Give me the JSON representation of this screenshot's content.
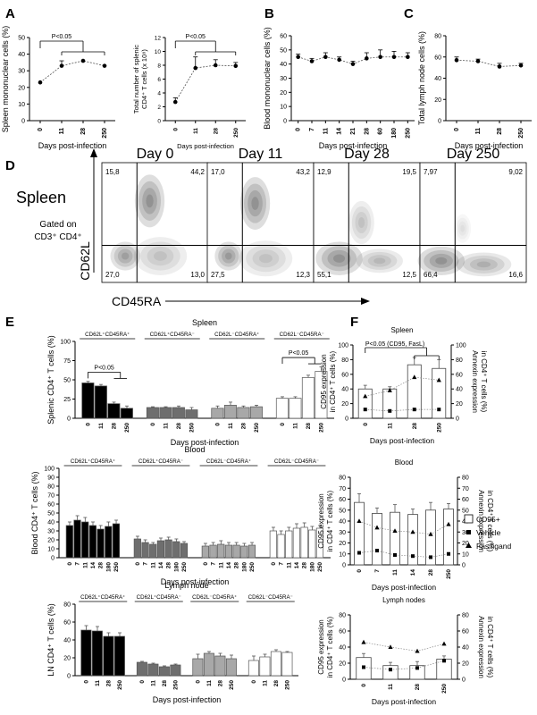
{
  "figure": {
    "panel_letters": [
      "A",
      "B",
      "C",
      "D",
      "E",
      "F"
    ],
    "x_axis_label": "Days post-infection",
    "d": {
      "tissue": "Spleen",
      "gate_line1": "Gated on",
      "gate_line2": "CD3⁺ CD4⁺",
      "y_marker": "CD62L",
      "x_marker": "CD45RA",
      "days": [
        "Day 0",
        "Day 11",
        "Day 28",
        "Day 250"
      ]
    },
    "f_legend": [
      "CD95+",
      "Vehicle",
      "Fas ligand"
    ]
  },
  "chart_data": [
    {
      "id": "A1",
      "type": "line",
      "ylabel": "Spleen mononuclear cells (%)",
      "xlabel": "Days post-infection",
      "categories": [
        "0",
        "11",
        "28",
        "250"
      ],
      "values": [
        23,
        33,
        36,
        33
      ],
      "errors": [
        0,
        3,
        0,
        0
      ],
      "ylim": [
        0,
        50
      ],
      "yticks": [
        0,
        10,
        20,
        30,
        40,
        50
      ],
      "significance": {
        "label": "P<0.05",
        "from": 0,
        "to": [
          1,
          3
        ]
      }
    },
    {
      "id": "A2",
      "type": "line",
      "ylabel_lines": [
        "Total number of splenic",
        "CD4⁺ T cells (x 10⁸)"
      ],
      "xlabel": "Days post-infection",
      "categories": [
        "0",
        "11",
        "28",
        "250"
      ],
      "values": [
        2.7,
        7.6,
        8.0,
        7.9
      ],
      "errors": [
        0.6,
        1.6,
        0.8,
        0.5
      ],
      "ylim": [
        0,
        12
      ],
      "yticks": [
        0,
        2,
        4,
        6,
        8,
        10,
        12
      ],
      "significance": {
        "label": "P<0.05",
        "from": 0,
        "to": [
          1,
          3
        ]
      }
    },
    {
      "id": "B",
      "type": "line",
      "ylabel": "Blood mononuclear cells (%)",
      "xlabel": "Days post-infection",
      "categories": [
        "0",
        "7",
        "11",
        "14",
        "21",
        "28",
        "60",
        "180",
        "250"
      ],
      "values": [
        45,
        42,
        45,
        43,
        40,
        44,
        45,
        45,
        45
      ],
      "errors": [
        2,
        2,
        3,
        2,
        2,
        4,
        5,
        4,
        3
      ],
      "ylim": [
        0,
        60
      ],
      "yticks": [
        0,
        10,
        20,
        30,
        40,
        50,
        60
      ]
    },
    {
      "id": "C",
      "type": "line",
      "ylabel": "Total lymph node cells (%)",
      "xlabel": "Days post-infection",
      "categories": [
        "0",
        "11",
        "28",
        "250"
      ],
      "values": [
        57,
        56,
        51,
        52
      ],
      "errors": [
        3,
        2,
        3,
        2
      ],
      "ylim": [
        0,
        80
      ],
      "yticks": [
        0,
        20,
        40,
        60,
        80
      ]
    },
    {
      "id": "D",
      "type": "scatter",
      "title": "Spleen",
      "xlabel": "CD45RA",
      "ylabel": "CD62L",
      "facets": [
        {
          "title": "Day 0",
          "quadrants": {
            "ul": "15,8",
            "ur": "44,2",
            "ll": "27,0",
            "lr": "13,0"
          }
        },
        {
          "title": "Day 11",
          "quadrants": {
            "ul": "17,0",
            "ur": "43,2",
            "ll": "27,5",
            "lr": "12,3"
          }
        },
        {
          "title": "Day 28",
          "quadrants": {
            "ul": "12,9",
            "ur": "19,5",
            "ll": "55,1",
            "lr": "12,5"
          }
        },
        {
          "title": "Day 250",
          "quadrants": {
            "ul": "7,97",
            "ur": "9,02",
            "ll": "66,4",
            "lr": "16,6"
          }
        }
      ]
    },
    {
      "id": "E-spleen",
      "type": "bar",
      "title": "Spleen",
      "ylabel": "Splenic CD4⁺ T cells (%)",
      "xlabel": "Days post-infection",
      "categories": [
        "0",
        "11",
        "28",
        "250"
      ],
      "ylim": [
        0,
        100
      ],
      "yticks": [
        0,
        25,
        50,
        75,
        100
      ],
      "series": [
        {
          "name": "CD62L⁺CD45RA⁺",
          "color": "#000000",
          "values": [
            46,
            42,
            19,
            13
          ],
          "errors": [
            2,
            2,
            2,
            3
          ]
        },
        {
          "name": "CD62L⁺CD45RA⁻",
          "color": "#6e6e6e",
          "values": [
            14,
            14,
            14,
            11
          ],
          "errors": [
            1,
            1,
            2,
            3
          ]
        },
        {
          "name": "CD62L⁻CD45RA⁺",
          "color": "#a8a8a8",
          "values": [
            13,
            17,
            14,
            15
          ],
          "errors": [
            3,
            4,
            2,
            2
          ]
        },
        {
          "name": "CD62L⁻CD45RA⁻",
          "color": "#ffffff",
          "values": [
            26,
            26,
            53,
            61
          ],
          "errors": [
            2,
            2,
            3,
            6
          ]
        }
      ],
      "significance": [
        {
          "label": "P<0.05",
          "series": 0
        },
        {
          "label": "P<0.05",
          "series": 3
        }
      ]
    },
    {
      "id": "E-blood",
      "type": "bar",
      "title": "Blood",
      "ylabel": "Blood CD4⁺ T cells (%)",
      "xlabel": "Days post-infection",
      "categories": [
        "0",
        "7",
        "11",
        "14",
        "28",
        "180",
        "250"
      ],
      "ylim": [
        0,
        100
      ],
      "yticks": [
        0,
        10,
        20,
        30,
        40,
        50,
        60,
        70,
        80,
        90,
        100
      ],
      "series": [
        {
          "name": "CD62L⁺CD45RA⁺",
          "color": "#000000",
          "values": [
            36,
            42,
            40,
            36,
            32,
            35,
            38
          ],
          "errors": [
            4,
            5,
            5,
            4,
            4,
            5,
            4
          ]
        },
        {
          "name": "CD62L⁺CD45RA⁻",
          "color": "#6e6e6e",
          "values": [
            21,
            17,
            15,
            19,
            20,
            18,
            16
          ],
          "errors": [
            3,
            3,
            2,
            3,
            3,
            3,
            2
          ]
        },
        {
          "name": "CD62L⁻CD45RA⁺",
          "color": "#a8a8a8",
          "values": [
            13,
            14,
            15,
            14,
            14,
            13,
            14
          ],
          "errors": [
            3,
            3,
            4,
            3,
            3,
            3,
            3
          ]
        },
        {
          "name": "CD62L⁻CD45RA⁻",
          "color": "#ffffff",
          "values": [
            30,
            26,
            30,
            33,
            34,
            31,
            33
          ],
          "errors": [
            4,
            4,
            4,
            5,
            5,
            4,
            3
          ]
        }
      ]
    },
    {
      "id": "E-lymph",
      "type": "bar",
      "title": "Lymph node",
      "ylabel": "LN CD4⁺ T cells (%)",
      "xlabel": "Days post-infection",
      "categories": [
        "0",
        "11",
        "28",
        "250"
      ],
      "ylim": [
        0,
        80
      ],
      "yticks": [
        0,
        20,
        40,
        60,
        80
      ],
      "series": [
        {
          "name": "CD62L⁺CD45RA⁺",
          "color": "#000000",
          "values": [
            51,
            50,
            44,
            44
          ],
          "errors": [
            5,
            5,
            4,
            4
          ]
        },
        {
          "name": "CD62L⁺CD45RA⁻",
          "color": "#6e6e6e",
          "values": [
            15,
            13,
            10,
            12
          ],
          "errors": [
            1,
            1,
            1,
            1
          ]
        },
        {
          "name": "CD62L⁻CD45RA⁺",
          "color": "#a8a8a8",
          "values": [
            19,
            25,
            22,
            19
          ],
          "errors": [
            5,
            2,
            3,
            4
          ]
        },
        {
          "name": "CD62L⁻CD45RA⁻",
          "color": "#ffffff",
          "values": [
            17,
            21,
            27,
            26
          ],
          "errors": [
            5,
            3,
            2,
            1
          ]
        }
      ]
    },
    {
      "id": "F-spleen",
      "type": "bar",
      "title": "Spleen",
      "ylabel_left": [
        "CD95 expression",
        "in CD4⁺ T cells (%)"
      ],
      "ylabel_right": [
        "Annexin expression",
        "in CD4⁺ T cells (%)"
      ],
      "xlabel": "Days post-infection",
      "categories": [
        "0",
        "11",
        "28",
        "250"
      ],
      "ylim": [
        0,
        100
      ],
      "yticks": [
        0,
        20,
        40,
        60,
        80,
        100
      ],
      "series": [
        {
          "name": "CD95+",
          "kind": "bar",
          "values": [
            40,
            40,
            73,
            68
          ],
          "errors": [
            5,
            3,
            10,
            12
          ]
        },
        {
          "name": "Vehicle",
          "kind": "marker",
          "values": [
            12,
            10,
            12,
            12
          ]
        },
        {
          "name": "Fas ligand",
          "kind": "marker",
          "values": [
            30,
            38,
            56,
            52
          ]
        }
      ],
      "significance": {
        "label": "P<0.05 (CD95, FasL)",
        "from": 0,
        "to": [
          2,
          3
        ]
      }
    },
    {
      "id": "F-blood",
      "type": "bar",
      "title": "Blood",
      "ylabel_left": [
        "CD95 expression",
        "in CD4⁺ T cells (%)"
      ],
      "ylabel_right": [
        "Annexin expression",
        "in CD4⁺ T cells (%)"
      ],
      "xlabel": "Days post-infection",
      "categories": [
        "0",
        "7",
        "11",
        "14",
        "28",
        "250"
      ],
      "ylim": [
        0,
        80
      ],
      "yticks": [
        0,
        10,
        20,
        30,
        40,
        50,
        60,
        70,
        80
      ],
      "series": [
        {
          "name": "CD95+",
          "kind": "bar",
          "values": [
            57,
            47,
            48,
            46,
            50,
            51
          ],
          "errors": [
            8,
            5,
            7,
            5,
            7,
            5
          ]
        },
        {
          "name": "Vehicle",
          "kind": "marker",
          "values": [
            11,
            13,
            9,
            8,
            7,
            10
          ]
        },
        {
          "name": "Fas ligand",
          "kind": "marker",
          "values": [
            40,
            34,
            31,
            30,
            28,
            37
          ]
        }
      ]
    },
    {
      "id": "F-lymph",
      "type": "bar",
      "title": "Lymph nodes",
      "ylabel_left": [
        "CD95 expression",
        "in CD4⁺ T cells (%)"
      ],
      "ylabel_right": [
        "Annexin expression",
        "in CD4⁺ T cells (%)"
      ],
      "xlabel": "Days post-infection",
      "categories": [
        "0",
        "11",
        "28",
        "250"
      ],
      "ylim": [
        0,
        80
      ],
      "yticks": [
        0,
        20,
        40,
        60,
        80
      ],
      "series": [
        {
          "name": "CD95+",
          "kind": "bar",
          "values": [
            27,
            17,
            17,
            25
          ],
          "errors": [
            5,
            4,
            5,
            4
          ]
        },
        {
          "name": "Vehicle",
          "kind": "marker",
          "values": [
            15,
            12,
            14,
            23
          ]
        },
        {
          "name": "Fas ligand",
          "kind": "marker",
          "values": [
            46,
            40,
            35,
            44
          ]
        }
      ]
    }
  ]
}
